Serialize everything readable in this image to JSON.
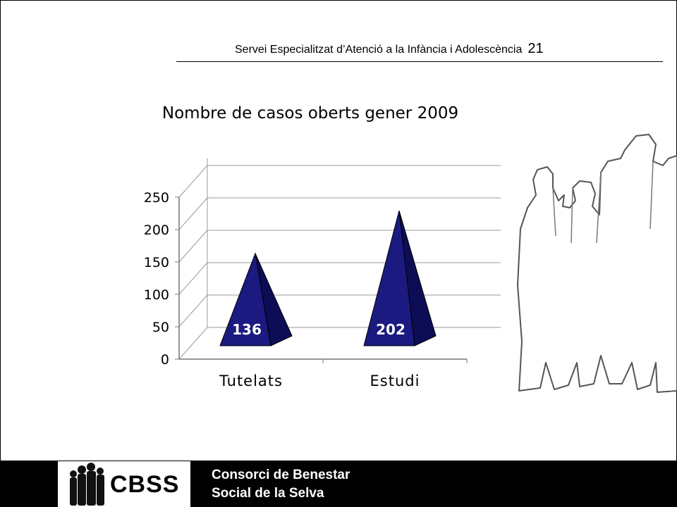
{
  "header": {
    "title": "Servei Especialitzat d’Atenció a la Infància i Adolescència",
    "page_number": "21"
  },
  "chart_data": {
    "type": "bar",
    "title": "Nombre de casos oberts gener 2009",
    "categories": [
      "Tutelats",
      "Estudi"
    ],
    "values": [
      136,
      202
    ],
    "data_labels": [
      "136",
      "202"
    ],
    "ylim": [
      0,
      250
    ],
    "yticks": [
      "0",
      "50",
      "100",
      "150",
      "200",
      "250"
    ],
    "xlabel": "",
    "ylabel": "",
    "grid": true,
    "shape": "pyramid",
    "bar_color": "#1a1a80",
    "bar_dark_color": "#0d0d55"
  },
  "footer": {
    "logo_text": "CBSS",
    "org_line1": "Consorci de Benestar",
    "org_line2": "Social de la Selva"
  }
}
